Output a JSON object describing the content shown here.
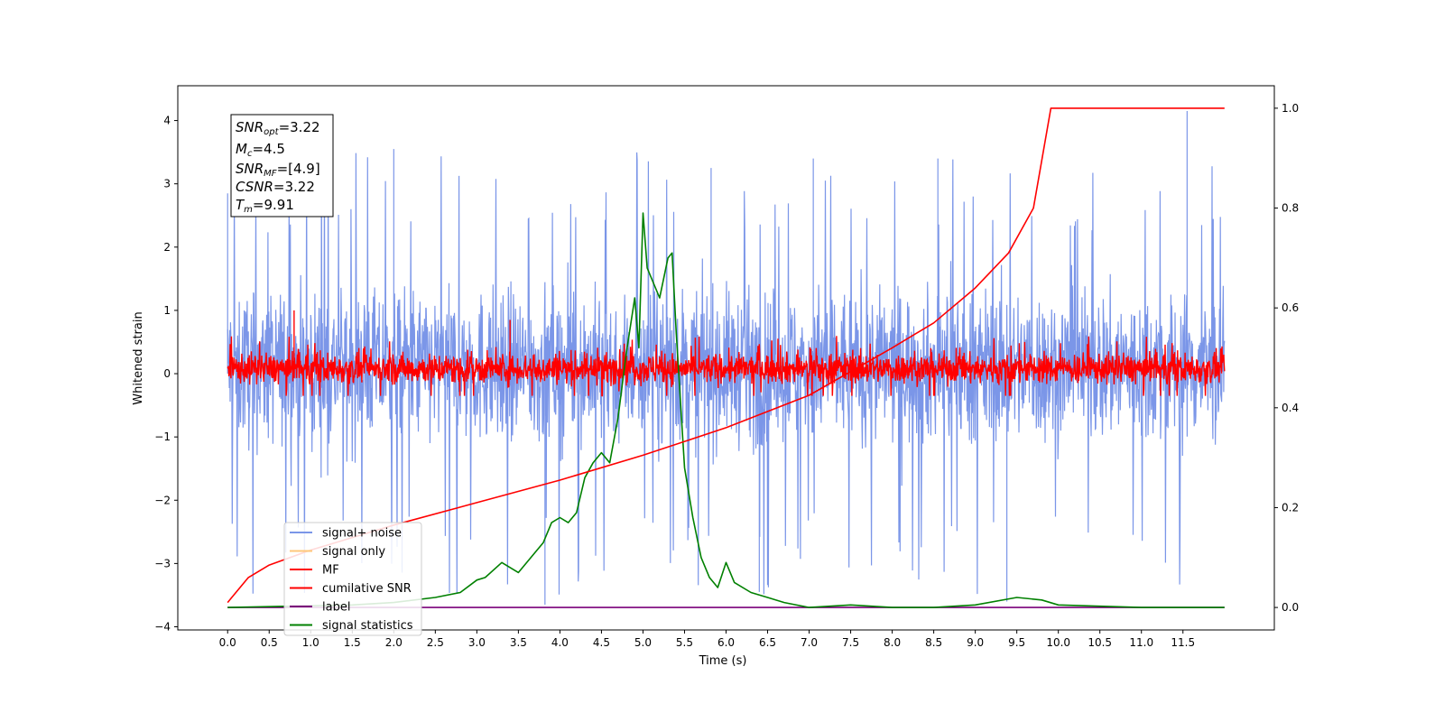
{
  "chart_data": {
    "type": "line",
    "xlabel": "Time (s)",
    "ylabel": "Whitened strain",
    "x_ticks": [
      "0.0",
      "0.5",
      "1.0",
      "1.5",
      "2.0",
      "2.5",
      "3.0",
      "3.5",
      "4.0",
      "4.5",
      "5.0",
      "5.5",
      "6.0",
      "6.5",
      "7.0",
      "7.5",
      "8.0",
      "8.5",
      "9.0",
      "9.5",
      "10.0",
      "10.5",
      "11.0",
      "11.5"
    ],
    "y_ticks": [
      "−4",
      "−3",
      "−2",
      "−1",
      "0",
      "1",
      "2",
      "3",
      "4"
    ],
    "y2_ticks": [
      "0.0",
      "0.2",
      "0.4",
      "0.6",
      "0.8",
      "1.0"
    ],
    "xlim": [
      -0.6,
      12.6
    ],
    "ylim": [
      -4.05,
      4.55
    ],
    "y2lim": [
      -0.045,
      1.045
    ],
    "grid": false,
    "legend_position": "lower-left",
    "info_box": {
      "snr_opt_base": "SNR",
      "snr_opt_sub": "opt",
      "snr_opt_val": "=3.22",
      "mc_base": "M",
      "mc_sub": "c",
      "mc_val": "=4.5",
      "snr_mf_base": "SNR",
      "snr_mf_sub": "MF",
      "snr_mf_val": "=[4.9]",
      "csnr_base": "CSNR",
      "csnr_val": "=3.22",
      "tm_base": "T",
      "tm_sub": "m",
      "tm_val": "=9.91"
    },
    "legend": [
      {
        "label": "signal+ noise",
        "color": "#7b96e8"
      },
      {
        "label": "signal only",
        "color": "#ffc77a"
      },
      {
        "label": "MF",
        "color": "#ff0000"
      },
      {
        "label": "cumilative SNR",
        "color": "#ff0000"
      },
      {
        "label": "label",
        "color": "#7a007a"
      },
      {
        "label": "signal statistics",
        "color": "#008000"
      }
    ],
    "series": [
      {
        "name": "signal+ noise",
        "axis": "left",
        "color": "#7b96e8",
        "x_range": [
          0.0,
          12.0
        ],
        "amplitude_envelope": [
          -3.9,
          4.15
        ],
        "typical_range": [
          -2.3,
          2.6
        ]
      },
      {
        "name": "MF",
        "axis": "left",
        "color": "#ff0000",
        "x_range": [
          0.0,
          12.0
        ],
        "typical_range": [
          -0.35,
          0.55
        ],
        "peaks": [
          [
            0.8,
            1.0
          ],
          [
            3.4,
            0.85
          ]
        ]
      },
      {
        "name": "cumilative SNR",
        "axis": "right",
        "color": "#ff0000",
        "x": [
          0.0,
          0.25,
          0.5,
          1.0,
          2.0,
          3.0,
          4.0,
          5.0,
          6.0,
          7.0,
          8.0,
          8.5,
          9.0,
          9.4,
          9.7,
          9.91,
          10.5,
          11.0,
          12.0
        ],
        "y": [
          0.01,
          0.06,
          0.085,
          0.115,
          0.165,
          0.21,
          0.255,
          0.305,
          0.36,
          0.425,
          0.52,
          0.57,
          0.64,
          0.71,
          0.8,
          1.0,
          1.0,
          1.0,
          1.0
        ]
      },
      {
        "name": "label",
        "axis": "right",
        "color": "#7a007a",
        "x": [
          0.0,
          12.0
        ],
        "y": [
          0.0,
          0.0
        ]
      },
      {
        "name": "signal statistics",
        "axis": "right",
        "color": "#008000",
        "x": [
          0.0,
          1.5,
          2.0,
          2.5,
          2.8,
          3.0,
          3.1,
          3.3,
          3.5,
          3.7,
          3.8,
          3.9,
          4.0,
          4.1,
          4.2,
          4.3,
          4.4,
          4.5,
          4.6,
          4.7,
          4.8,
          4.9,
          4.95,
          5.0,
          5.05,
          5.1,
          5.2,
          5.3,
          5.35,
          5.4,
          5.5,
          5.6,
          5.7,
          5.8,
          5.9,
          6.0,
          6.1,
          6.3,
          6.5,
          6.7,
          7.0,
          7.5,
          8.0,
          8.5,
          9.0,
          9.5,
          9.8,
          10.0,
          11.0,
          12.0
        ],
        "y": [
          0.0,
          0.005,
          0.01,
          0.02,
          0.03,
          0.055,
          0.06,
          0.09,
          0.07,
          0.11,
          0.13,
          0.17,
          0.18,
          0.17,
          0.19,
          0.26,
          0.29,
          0.31,
          0.29,
          0.38,
          0.51,
          0.62,
          0.52,
          0.79,
          0.68,
          0.66,
          0.62,
          0.7,
          0.71,
          0.55,
          0.28,
          0.18,
          0.1,
          0.06,
          0.04,
          0.09,
          0.05,
          0.03,
          0.02,
          0.01,
          0.0,
          0.005,
          0.0,
          0.0,
          0.005,
          0.02,
          0.015,
          0.005,
          0.0,
          0.0
        ]
      }
    ]
  }
}
